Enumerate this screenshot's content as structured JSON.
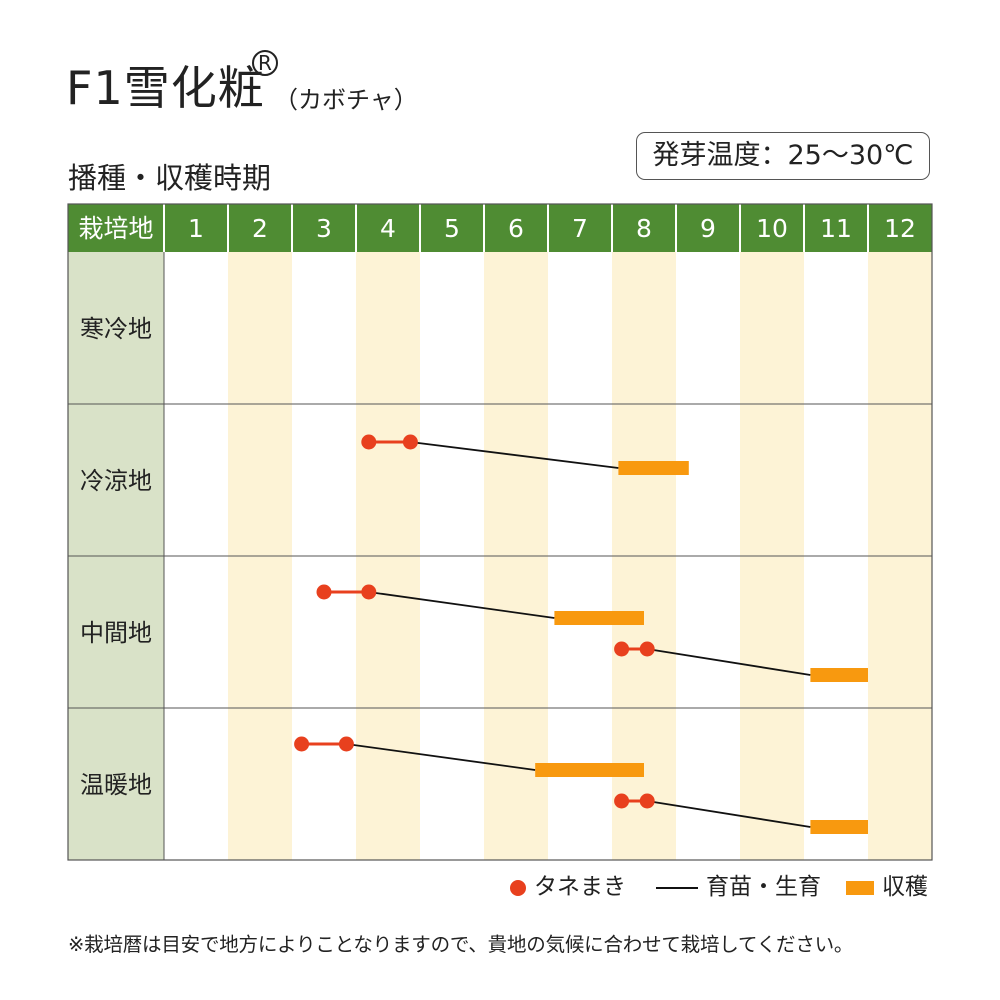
{
  "header": {
    "title": "F1雪化粧",
    "registered_mark": "R",
    "subtitle": "（カボチャ）",
    "section_title": "播種・収穫時期",
    "germination_label": "発芽温度：25〜30℃"
  },
  "colors": {
    "header_green": "#4f8c33",
    "region_column": "#d9e2c8",
    "stripe_cream": "#fdf3d6",
    "seed_red": "#e8401e",
    "harvest_orange": "#f8990f",
    "growth_line": "#111111",
    "grid_line": "#555555"
  },
  "chart_data": {
    "type": "table",
    "header_label": "栽培地",
    "months": [
      "1",
      "2",
      "3",
      "4",
      "5",
      "6",
      "7",
      "8",
      "9",
      "10",
      "11",
      "12"
    ],
    "regions": [
      {
        "name": "寒冷地",
        "schedules": []
      },
      {
        "name": "冷涼地",
        "schedules": [
          {
            "sowing": [
              4.2,
              4.85
            ],
            "growing": [
              4.85,
              8.1
            ],
            "harvest": [
              8.1,
              9.2
            ]
          }
        ]
      },
      {
        "name": "中間地",
        "schedules": [
          {
            "sowing": [
              3.5,
              4.2
            ],
            "growing": [
              4.2,
              7.1
            ],
            "harvest": [
              7.1,
              8.5
            ]
          },
          {
            "sowing": [
              8.15,
              8.55
            ],
            "growing": [
              8.55,
              11.1
            ],
            "harvest": [
              11.1,
              12.0
            ]
          }
        ]
      },
      {
        "name": "温暖地",
        "schedules": [
          {
            "sowing": [
              3.15,
              3.85
            ],
            "growing": [
              3.85,
              6.8
            ],
            "harvest": [
              6.8,
              8.5
            ]
          },
          {
            "sowing": [
              8.15,
              8.55
            ],
            "growing": [
              8.55,
              11.1
            ],
            "harvest": [
              11.1,
              12.0
            ]
          }
        ]
      }
    ]
  },
  "legend": {
    "sowing": "タネまき",
    "growing": "育苗・生育",
    "harvest": "収穫"
  },
  "footnote": "※栽培暦は目安で地方によりことなりますので、貴地の気候に合わせて栽培してください。"
}
